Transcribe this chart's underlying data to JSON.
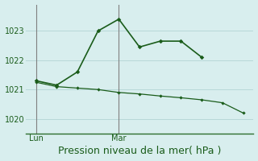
{
  "title": "Pression niveau de la mer( hPa )",
  "bg_color": "#d8eeee",
  "grid_color": "#b8d8d8",
  "line_color": "#1a5c1a",
  "axis_color": "#2d6e2d",
  "vline_color": "#808080",
  "ylim": [
    1019.5,
    1023.9
  ],
  "yticks": [
    1020,
    1021,
    1022,
    1023
  ],
  "xlim": [
    0,
    11
  ],
  "x_tick_pos": [
    0.5,
    4.5
  ],
  "x_tick_labels": [
    "Lun",
    "Mar"
  ],
  "vline_x": [
    0.5,
    4.5
  ],
  "series1_x": [
    0.5,
    1.5,
    2.5,
    3.5,
    4.5,
    5.5,
    6.5,
    7.5,
    8.5
  ],
  "series1_y": [
    1021.3,
    1021.15,
    1021.6,
    1023.0,
    1023.4,
    1022.45,
    1022.65,
    1022.65,
    1022.1
  ],
  "series2_x": [
    0.5,
    1.5,
    2.5,
    3.5,
    4.5,
    5.5,
    6.5,
    7.5,
    8.5,
    9.5,
    10.5
  ],
  "series2_y": [
    1021.25,
    1021.1,
    1021.05,
    1021.0,
    1020.9,
    1020.85,
    1020.78,
    1020.72,
    1020.65,
    1020.55,
    1020.2
  ],
  "ylabel_fontsize": 8,
  "xlabel_fontsize": 9,
  "tick_fontsize": 7
}
